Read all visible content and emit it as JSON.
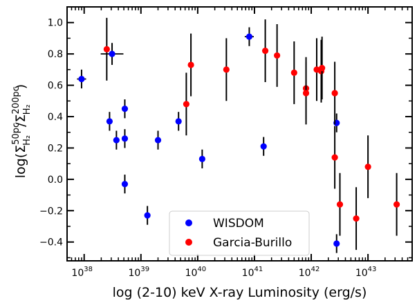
{
  "chart_data": {
    "type": "scatter",
    "xlabel": "log (2-10) keV X-ray Luminosity (erg/s)",
    "ylabel_parts": {
      "prefix": "log(",
      "sigma": "Σ",
      "sub_h2": "H₂",
      "sup_num": "50pc",
      "slash": "/",
      "sup_den": "200pc",
      "suffix": ")"
    },
    "x_scale": "log",
    "xlim": [
      5e+37,
      6e+43
    ],
    "ylim": [
      -0.52,
      1.1
    ],
    "x_ticks": [
      {
        "value": 1e+38,
        "base": "10",
        "exp": "38"
      },
      {
        "value": 1e+39,
        "base": "10",
        "exp": "39"
      },
      {
        "value": 1e+40,
        "base": "10",
        "exp": "40"
      },
      {
        "value": 1e+41,
        "base": "10",
        "exp": "41"
      },
      {
        "value": 1e+42,
        "base": "10",
        "exp": "42"
      },
      {
        "value": 1e+43,
        "base": "10",
        "exp": "43"
      }
    ],
    "y_ticks": [
      {
        "value": -0.4,
        "label": "−0.4"
      },
      {
        "value": -0.2,
        "label": "−0.2"
      },
      {
        "value": 0.0,
        "label": "0.0"
      },
      {
        "value": 0.2,
        "label": "0.2"
      },
      {
        "value": 0.4,
        "label": "0.4"
      },
      {
        "value": 0.6,
        "label": "0.6"
      },
      {
        "value": 0.8,
        "label": "0.8"
      },
      {
        "value": 1.0,
        "label": "1.0"
      }
    ],
    "grid": false,
    "legend_position": "bottom-center",
    "series": [
      {
        "name": "WISDOM",
        "color": "#0000ff",
        "points": [
          {
            "x": 9e+37,
            "y": 0.64,
            "yerr": 0.06,
            "xerr_log": 0.08
          },
          {
            "x": 3.1e+38,
            "y": 0.8,
            "yerr": 0.07,
            "xerr_log": 0.2
          },
          {
            "x": 2.8e+38,
            "y": 0.37,
            "yerr": 0.06
          },
          {
            "x": 3.7e+38,
            "y": 0.25,
            "yerr": 0.06
          },
          {
            "x": 5.2e+38,
            "y": 0.26,
            "yerr": 0.06
          },
          {
            "x": 5.2e+38,
            "y": 0.45,
            "yerr": 0.06
          },
          {
            "x": 5.2e+38,
            "y": -0.03,
            "yerr": 0.06
          },
          {
            "x": 1.3e+39,
            "y": -0.23,
            "yerr": 0.06
          },
          {
            "x": 2e+39,
            "y": 0.25,
            "yerr": 0.06
          },
          {
            "x": 4.6e+39,
            "y": 0.37,
            "yerr": 0.06
          },
          {
            "x": 1.2e+40,
            "y": 0.13,
            "yerr": 0.06
          },
          {
            "x": 8.1e+40,
            "y": 0.91,
            "yerr": 0.06,
            "xerr_log": 0.08
          },
          {
            "x": 1.45e+41,
            "y": 0.21,
            "yerr": 0.06
          },
          {
            "x": 2.8e+42,
            "y": 0.36,
            "yerr": 0.06
          },
          {
            "x": 2.8e+42,
            "y": -0.41,
            "yerr": 0.06
          }
        ]
      },
      {
        "name": "Garcia-Burillo",
        "color": "#ff0000",
        "points": [
          {
            "x": 2.5e+38,
            "y": 0.83,
            "yerr": 0.2
          },
          {
            "x": 6.3e+39,
            "y": 0.48,
            "yerr": 0.2
          },
          {
            "x": 7.6e+39,
            "y": 0.73,
            "yerr": 0.2
          },
          {
            "x": 3.2e+40,
            "y": 0.7,
            "yerr": 0.2
          },
          {
            "x": 1.55e+41,
            "y": 0.82,
            "yerr": 0.2
          },
          {
            "x": 2.5e+41,
            "y": 0.79,
            "yerr": 0.2
          },
          {
            "x": 5e+41,
            "y": 0.68,
            "yerr": 0.2
          },
          {
            "x": 8.1e+41,
            "y": 0.58,
            "yerr": 0.2
          },
          {
            "x": 8.1e+41,
            "y": 0.55,
            "yerr": 0.2
          },
          {
            "x": 1.25e+42,
            "y": 0.7,
            "yerr": 0.2
          },
          {
            "x": 1.5e+42,
            "y": 0.69,
            "yerr": 0.2
          },
          {
            "x": 1.55e+42,
            "y": 0.71,
            "yerr": 0.2
          },
          {
            "x": 2.6e+42,
            "y": 0.55,
            "yerr": 0.2
          },
          {
            "x": 2.6e+42,
            "y": 0.14,
            "yerr": 0.2
          },
          {
            "x": 3.2e+42,
            "y": -0.16,
            "yerr": 0.2
          },
          {
            "x": 6.2e+42,
            "y": -0.25,
            "yerr": 0.2
          },
          {
            "x": 1e+43,
            "y": 0.08,
            "yerr": 0.2
          },
          {
            "x": 3.2e+43,
            "y": -0.16,
            "yerr": 0.2
          }
        ]
      }
    ]
  }
}
